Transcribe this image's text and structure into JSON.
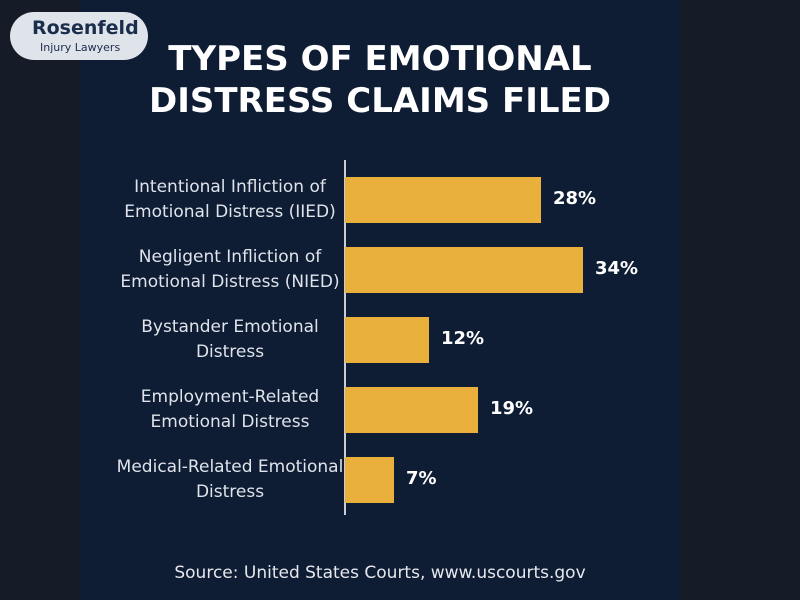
{
  "logo": {
    "name": "Rosenfeld",
    "tagline": "Injury Lawyers"
  },
  "chart_data": {
    "type": "hbar",
    "title": "TYPES OF EMOTIONAL DISTRESS CLAIMS FILED",
    "categories": [
      "Intentional Infliction of Emotional Distress (IIED)",
      "Negligent Infliction of Emotional Distress (NIED)",
      "Bystander Emotional Distress",
      "Employment-Related Emotional Distress",
      "Medical-Related Emotional Distress"
    ],
    "values": [
      28,
      34,
      12,
      19,
      7
    ],
    "value_labels": [
      "28%",
      "34%",
      "12%",
      "19%",
      "7%"
    ],
    "color": "#e9b03c",
    "source": "Source: United States Courts, www.uscourts.gov"
  }
}
